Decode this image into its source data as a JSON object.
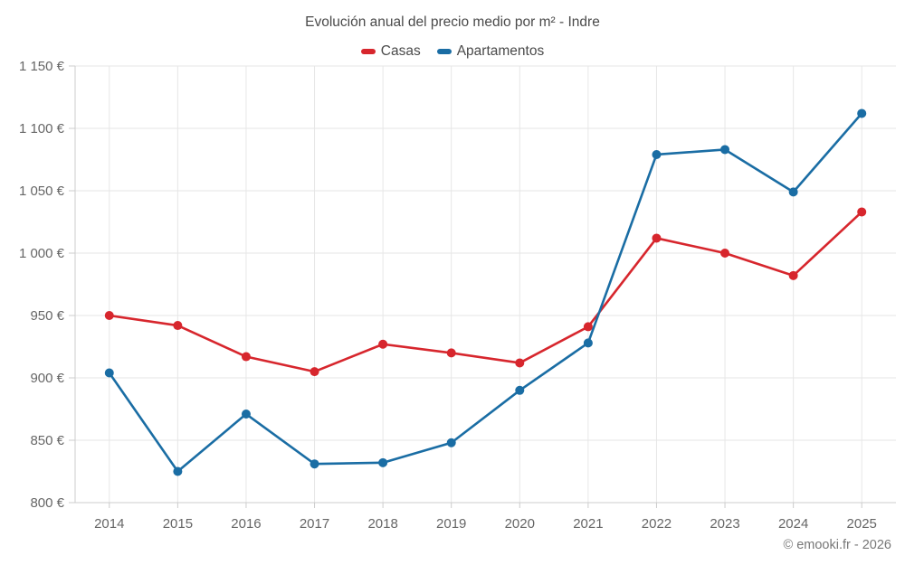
{
  "header": {
    "title": "Evolución anual del precio medio por m² - Indre"
  },
  "footer": {
    "credit": "© emooki.fr - 2026"
  },
  "theme": {
    "casas_color": "#d7262d",
    "apartamentos_color": "#1a6da4",
    "grid_color": "#e6e6e6",
    "axis_color": "#cccccc",
    "label_color": "#666666",
    "title_color": "#4a4a4a"
  },
  "chart_data": {
    "type": "line",
    "title": "Evolución anual del precio medio por m² - Indre",
    "categories": [
      "2014",
      "2015",
      "2016",
      "2017",
      "2018",
      "2019",
      "2020",
      "2021",
      "2022",
      "2023",
      "2024",
      "2025"
    ],
    "series": [
      {
        "name": "Casas",
        "color": "#d7262d",
        "values": [
          950,
          942,
          917,
          905,
          927,
          920,
          912,
          941,
          1012,
          1000,
          982,
          1033
        ]
      },
      {
        "name": "Apartamentos",
        "color": "#1a6da4",
        "values": [
          904,
          825,
          871,
          831,
          832,
          848,
          890,
          928,
          1079,
          1083,
          1049,
          1112
        ]
      }
    ],
    "xlabel": "",
    "ylabel": "",
    "ytick_format": "{value} €",
    "ytick_labels": [
      "800 €",
      "850 €",
      "900 €",
      "950 €",
      "1 000 €",
      "1 050 €",
      "1 100 €",
      "1 150 €"
    ],
    "ylim": [
      800,
      1150
    ],
    "ytick_step": 50,
    "grid": true,
    "legend_position": "top",
    "marker": "circle"
  }
}
